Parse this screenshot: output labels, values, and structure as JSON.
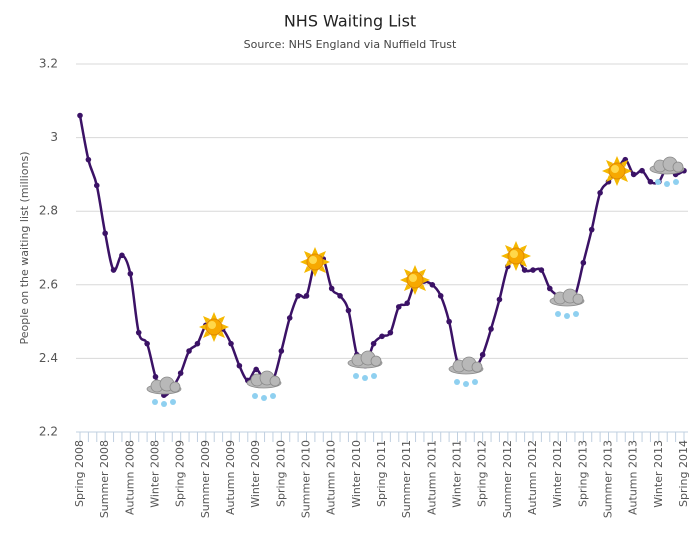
{
  "chart_data": {
    "type": "line",
    "title": "NHS Waiting List",
    "subtitle": "Source: NHS England via Nuffield Trust",
    "y_label": "People on the waiting list (millions)",
    "categories": [
      "Spring 2008",
      null,
      null,
      "Summer 2008",
      null,
      null,
      "Autumn 2008",
      null,
      null,
      "Winter 2008",
      null,
      null,
      "Spring 2009",
      null,
      null,
      "Summer 2009",
      null,
      null,
      "Autumn 2009",
      null,
      null,
      "Winter 2009",
      null,
      null,
      "Spring 2010",
      null,
      null,
      "Summer 2010",
      null,
      null,
      "Autumn 2010",
      null,
      null,
      "Winter 2010",
      null,
      null,
      "Spring 2011",
      null,
      null,
      "Summer 2011",
      null,
      null,
      "Autumn 2011",
      null,
      null,
      "Winter 2011",
      null,
      null,
      "Spring 2012",
      null,
      null,
      "Summer 2012",
      null,
      null,
      "Autumn 2012",
      null,
      null,
      "Winter 2012",
      null,
      null,
      "Spring 2013",
      null,
      null,
      "Summer 2013",
      null,
      null,
      "Autumn 2013",
      null,
      null,
      "Winter 2013",
      null,
      null,
      "Spring 2014"
    ],
    "series": [
      {
        "name": "Waiting list",
        "color": "#3b1266",
        "values": [
          3.06,
          2.94,
          2.87,
          2.74,
          2.64,
          2.68,
          2.63,
          2.47,
          2.44,
          2.35,
          2.3,
          2.32,
          2.36,
          2.42,
          2.44,
          2.49,
          2.49,
          2.48,
          2.44,
          2.38,
          2.34,
          2.37,
          2.34,
          2.34,
          2.42,
          2.51,
          2.57,
          2.57,
          2.66,
          2.67,
          2.59,
          2.57,
          2.53,
          2.41,
          2.38,
          2.44,
          2.46,
          2.47,
          2.54,
          2.55,
          2.61,
          2.61,
          2.6,
          2.57,
          2.5,
          2.39,
          2.38,
          2.37,
          2.41,
          2.48,
          2.56,
          2.65,
          2.68,
          2.64,
          2.64,
          2.64,
          2.59,
          2.57,
          2.56,
          2.57,
          2.66,
          2.75,
          2.85,
          2.88,
          2.91,
          2.94,
          2.9,
          2.91,
          2.88,
          2.88,
          2.92,
          2.9,
          2.91
        ]
      }
    ],
    "ylim": [
      2.2,
      3.2
    ],
    "yticks": [
      2.2,
      2.4,
      2.6,
      2.8,
      3,
      3.2
    ],
    "grid": true
  }
}
